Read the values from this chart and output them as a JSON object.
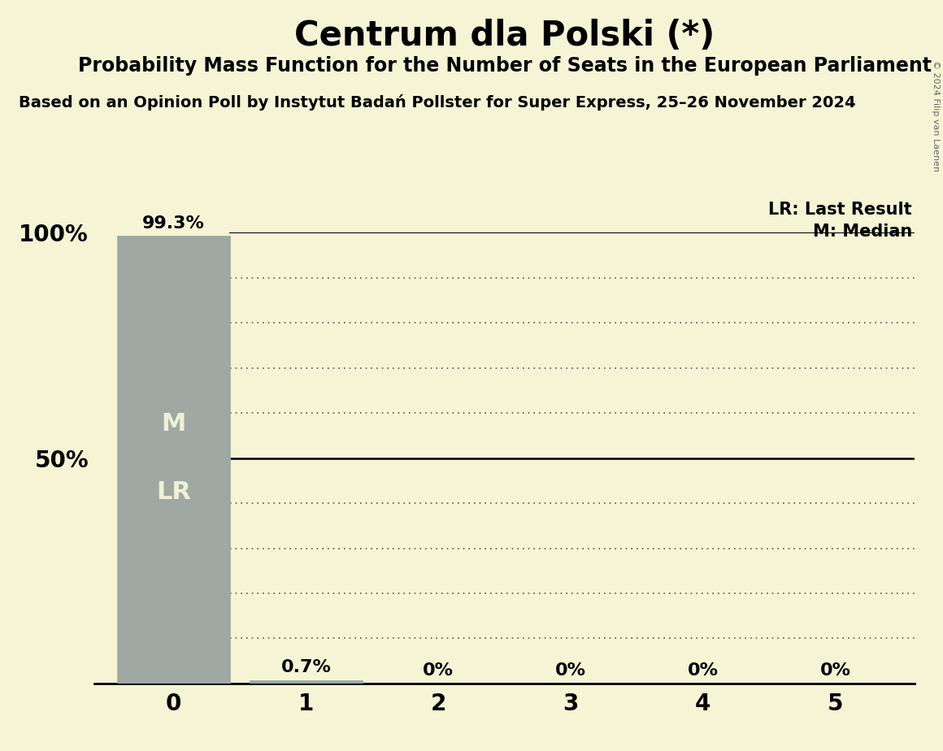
{
  "title": "Centrum dla Polski (*)",
  "subtitle": "Probability Mass Function for the Number of Seats in the European Parliament",
  "source": "Based on an Opinion Poll by Instytut Badań Pollster for Super Express, 25–26 November 2024",
  "copyright": "© 2024 Filip van Laenen",
  "seats": [
    0,
    1,
    2,
    3,
    4,
    5
  ],
  "probabilities": [
    99.3,
    0.7,
    0.0,
    0.0,
    0.0,
    0.0
  ],
  "bar_color": "#9fa8a3",
  "median": 0,
  "last_result": 0,
  "background_color": "#f5f5d5",
  "legend_lr": "LR: Last Result",
  "legend_m": "M: Median",
  "solid_line_color": "#000000",
  "dotted_line_color": "#555555",
  "label_color_dark": "#000000",
  "label_color_light": "#f0f0d8",
  "title_fontsize": 30,
  "subtitle_fontsize": 17,
  "source_fontsize": 14,
  "bar_label_fontsize": 16,
  "legend_fontsize": 15,
  "ytick_fontsize": 20,
  "xtick_fontsize": 20,
  "mlr_fontsize": 22
}
